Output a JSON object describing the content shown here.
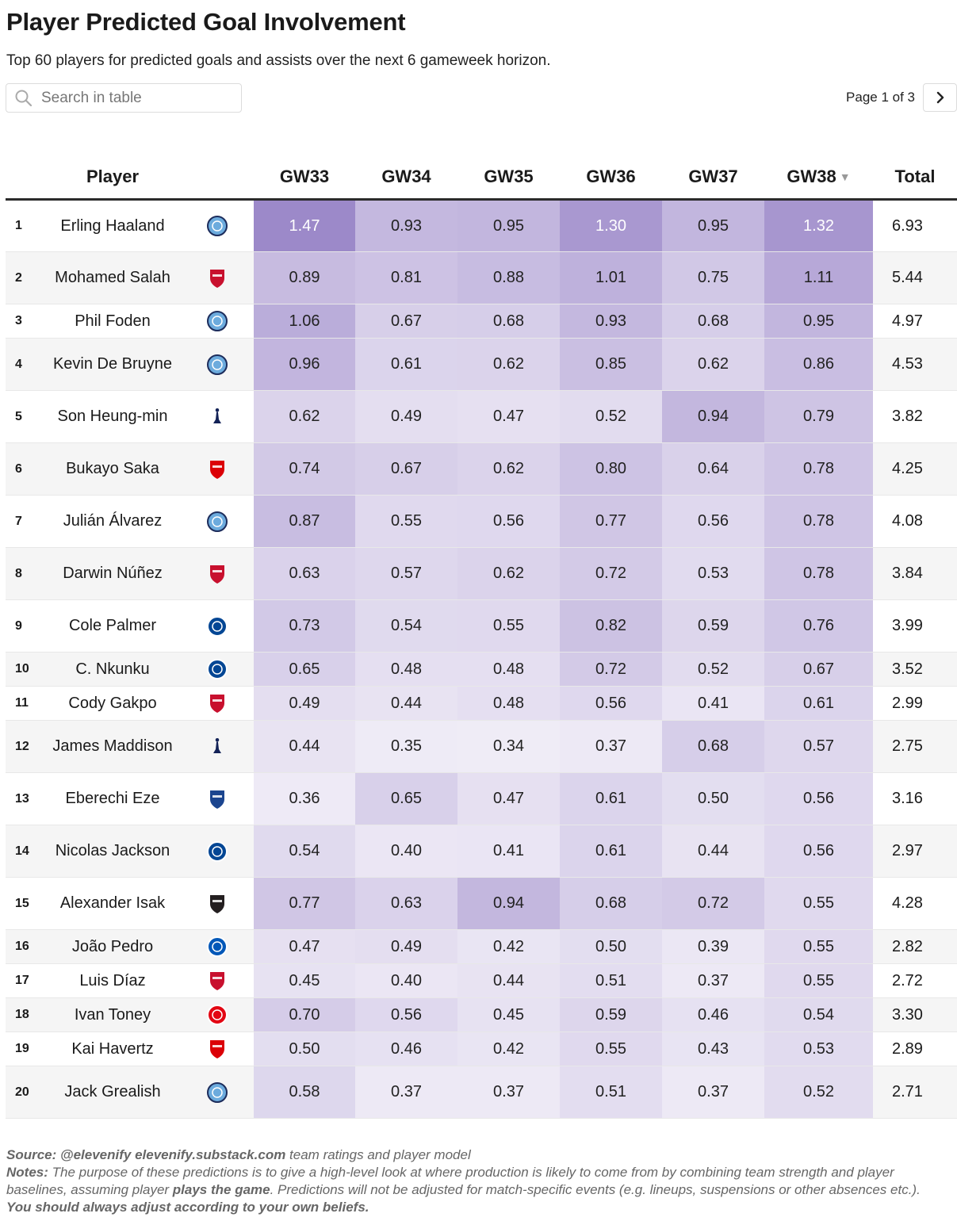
{
  "title": "Player Predicted Goal Involvement",
  "subtitle": "Top 60 players for predicted goals and assists over the next 6 gameweek horizon.",
  "search": {
    "placeholder": "Search in table",
    "icon": "search-icon"
  },
  "pager": {
    "text": "Page 1 of 3",
    "icon": "chevron-right-icon"
  },
  "columns": [
    "",
    "Player",
    "",
    "GW33",
    "GW34",
    "GW35",
    "GW36",
    "GW37",
    "GW38",
    "Total"
  ],
  "sort_indicator": "▼",
  "team_colors": {
    "MCI": "#6cabdd",
    "LIV": "#c8102e",
    "TOT": "#132257",
    "ARS": "#db0007",
    "CHE": "#034694",
    "CRY": "#1b458f",
    "NEW": "#241f20",
    "BHA": "#0057b8",
    "BRE": "#e30613"
  },
  "heat_color": "#9a86c8",
  "rows": [
    {
      "rank": "1",
      "player": "Erling Haaland",
      "team": "MCI",
      "values": [
        "1.47",
        "0.93",
        "0.95",
        "1.30",
        "0.95",
        "1.32"
      ],
      "total": "6.93",
      "tall": true
    },
    {
      "rank": "2",
      "player": "Mohamed Salah",
      "team": "LIV",
      "values": [
        "0.89",
        "0.81",
        "0.88",
        "1.01",
        "0.75",
        "1.11"
      ],
      "total": "5.44",
      "tall": true
    },
    {
      "rank": "3",
      "player": "Phil Foden",
      "team": "MCI",
      "values": [
        "1.06",
        "0.67",
        "0.68",
        "0.93",
        "0.68",
        "0.95"
      ],
      "total": "4.97",
      "tall": false
    },
    {
      "rank": "4",
      "player": "Kevin De Bruyne",
      "team": "MCI",
      "values": [
        "0.96",
        "0.61",
        "0.62",
        "0.85",
        "0.62",
        "0.86"
      ],
      "total": "4.53",
      "tall": true
    },
    {
      "rank": "5",
      "player": "Son Heung-min",
      "team": "TOT",
      "values": [
        "0.62",
        "0.49",
        "0.47",
        "0.52",
        "0.94",
        "0.79"
      ],
      "total": "3.82",
      "tall": true
    },
    {
      "rank": "6",
      "player": "Bukayo Saka",
      "team": "ARS",
      "values": [
        "0.74",
        "0.67",
        "0.62",
        "0.80",
        "0.64",
        "0.78"
      ],
      "total": "4.25",
      "tall": true
    },
    {
      "rank": "7",
      "player": "Julián Álvarez",
      "team": "MCI",
      "values": [
        "0.87",
        "0.55",
        "0.56",
        "0.77",
        "0.56",
        "0.78"
      ],
      "total": "4.08",
      "tall": true
    },
    {
      "rank": "8",
      "player": "Darwin Núñez",
      "team": "LIV",
      "values": [
        "0.63",
        "0.57",
        "0.62",
        "0.72",
        "0.53",
        "0.78"
      ],
      "total": "3.84",
      "tall": true
    },
    {
      "rank": "9",
      "player": "Cole Palmer",
      "team": "CHE",
      "values": [
        "0.73",
        "0.54",
        "0.55",
        "0.82",
        "0.59",
        "0.76"
      ],
      "total": "3.99",
      "tall": true
    },
    {
      "rank": "10",
      "player": "C. Nkunku",
      "team": "CHE",
      "values": [
        "0.65",
        "0.48",
        "0.48",
        "0.72",
        "0.52",
        "0.67"
      ],
      "total": "3.52",
      "tall": false
    },
    {
      "rank": "11",
      "player": "Cody Gakpo",
      "team": "LIV",
      "values": [
        "0.49",
        "0.44",
        "0.48",
        "0.56",
        "0.41",
        "0.61"
      ],
      "total": "2.99",
      "tall": false
    },
    {
      "rank": "12",
      "player": "James Maddison",
      "team": "TOT",
      "values": [
        "0.44",
        "0.35",
        "0.34",
        "0.37",
        "0.68",
        "0.57"
      ],
      "total": "2.75",
      "tall": true
    },
    {
      "rank": "13",
      "player": "Eberechi Eze",
      "team": "CRY",
      "values": [
        "0.36",
        "0.65",
        "0.47",
        "0.61",
        "0.50",
        "0.56"
      ],
      "total": "3.16",
      "tall": true
    },
    {
      "rank": "14",
      "player": "Nicolas Jackson",
      "team": "CHE",
      "values": [
        "0.54",
        "0.40",
        "0.41",
        "0.61",
        "0.44",
        "0.56"
      ],
      "total": "2.97",
      "tall": true
    },
    {
      "rank": "15",
      "player": "Alexander Isak",
      "team": "NEW",
      "values": [
        "0.77",
        "0.63",
        "0.94",
        "0.68",
        "0.72",
        "0.55"
      ],
      "total": "4.28",
      "tall": true
    },
    {
      "rank": "16",
      "player": "João Pedro",
      "team": "BHA",
      "values": [
        "0.47",
        "0.49",
        "0.42",
        "0.50",
        "0.39",
        "0.55"
      ],
      "total": "2.82",
      "tall": false
    },
    {
      "rank": "17",
      "player": "Luis Díaz",
      "team": "LIV",
      "values": [
        "0.45",
        "0.40",
        "0.44",
        "0.51",
        "0.37",
        "0.55"
      ],
      "total": "2.72",
      "tall": false
    },
    {
      "rank": "18",
      "player": "Ivan Toney",
      "team": "BRE",
      "values": [
        "0.70",
        "0.56",
        "0.45",
        "0.59",
        "0.46",
        "0.54"
      ],
      "total": "3.30",
      "tall": false
    },
    {
      "rank": "19",
      "player": "Kai Havertz",
      "team": "ARS",
      "values": [
        "0.50",
        "0.46",
        "0.42",
        "0.55",
        "0.43",
        "0.53"
      ],
      "total": "2.89",
      "tall": false
    },
    {
      "rank": "20",
      "player": "Jack Grealish",
      "team": "MCI",
      "values": [
        "0.58",
        "0.37",
        "0.37",
        "0.51",
        "0.37",
        "0.52"
      ],
      "total": "2.71",
      "tall": true
    }
  ],
  "footer": {
    "source_label": "Source: @elevenify elevenify.substack.com",
    "source_text": " team ratings and player model",
    "notes_label": "Notes:",
    "notes_text_1": " The purpose of these predictions is to give a high-level look at where production is likely to come from by combining team strength and player baselines, assuming player ",
    "notes_bold": "plays the game",
    "notes_text_2": ". Predictions will not be adjusted for match-specific events (e.g. lineups, suspensions or other absences etc.).",
    "closing": "You should always adjust according to your own beliefs."
  }
}
